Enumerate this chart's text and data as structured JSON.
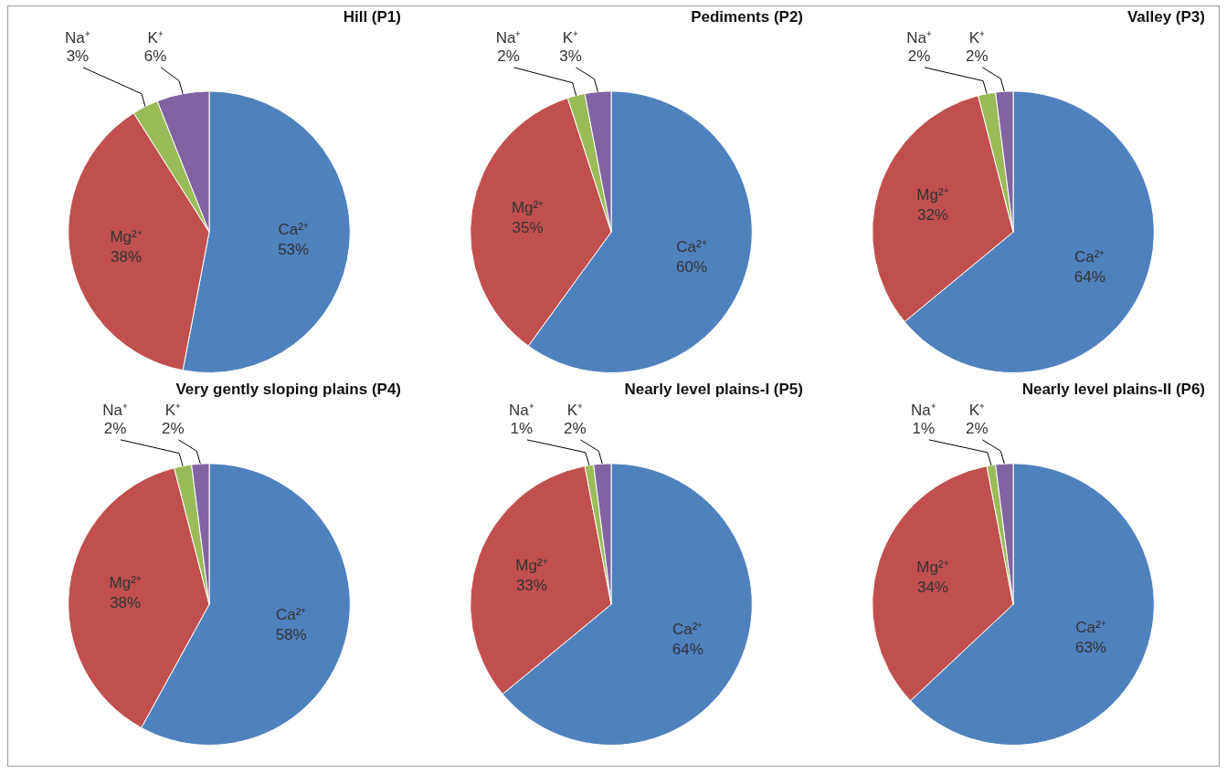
{
  "chart_data": [
    {
      "type": "pie",
      "title": "Hill (P1)",
      "categories": [
        "Ca²⁺",
        "Mg²⁺",
        "Na⁺",
        "K⁺"
      ],
      "values": [
        53,
        38,
        3,
        6
      ],
      "value_labels": [
        "53%",
        "38%",
        "3%",
        "6%"
      ],
      "colors": [
        "#4f81bd",
        "#c0504d",
        "#9bbb59",
        "#8064a2"
      ]
    },
    {
      "type": "pie",
      "title": "Pediments (P2)",
      "categories": [
        "Ca²⁺",
        "Mg²⁺",
        "Na⁺",
        "K⁺"
      ],
      "values": [
        60,
        35,
        2,
        3
      ],
      "value_labels": [
        "60%",
        "35%",
        "2%",
        "3%"
      ],
      "colors": [
        "#4f81bd",
        "#c0504d",
        "#9bbb59",
        "#8064a2"
      ]
    },
    {
      "type": "pie",
      "title": "Valley (P3)",
      "categories": [
        "Ca²⁺",
        "Mg²⁺",
        "Na⁺",
        "K⁺"
      ],
      "values": [
        64,
        32,
        2,
        2
      ],
      "value_labels": [
        "64%",
        "32%",
        "2%",
        "2%"
      ],
      "colors": [
        "#4f81bd",
        "#c0504d",
        "#9bbb59",
        "#8064a2"
      ]
    },
    {
      "type": "pie",
      "title": "Very gently sloping plains (P4)",
      "categories": [
        "Ca²⁺",
        "Mg²⁺",
        "Na⁺",
        "K⁺"
      ],
      "values": [
        58,
        38,
        2,
        2
      ],
      "value_labels": [
        "58%",
        "38%",
        "2%",
        "2%"
      ],
      "colors": [
        "#4f81bd",
        "#c0504d",
        "#9bbb59",
        "#8064a2"
      ]
    },
    {
      "type": "pie",
      "title": "Nearly level plains-I (P5)",
      "categories": [
        "Ca²⁺",
        "Mg²⁺",
        "Na⁺",
        "K⁺"
      ],
      "values": [
        64,
        33,
        1,
        2
      ],
      "value_labels": [
        "64%",
        "33%",
        "1%",
        "2%"
      ],
      "colors": [
        "#4f81bd",
        "#c0504d",
        "#9bbb59",
        "#8064a2"
      ]
    },
    {
      "type": "pie",
      "title": "Nearly level plains-II (P6)",
      "categories": [
        "Ca²⁺",
        "Mg²⁺",
        "Na⁺",
        "K⁺"
      ],
      "values": [
        63,
        34,
        1,
        2
      ],
      "value_labels": [
        "63%",
        "34%",
        "1%",
        "2%"
      ],
      "colors": [
        "#4f81bd",
        "#c0504d",
        "#9bbb59",
        "#8064a2"
      ]
    }
  ]
}
